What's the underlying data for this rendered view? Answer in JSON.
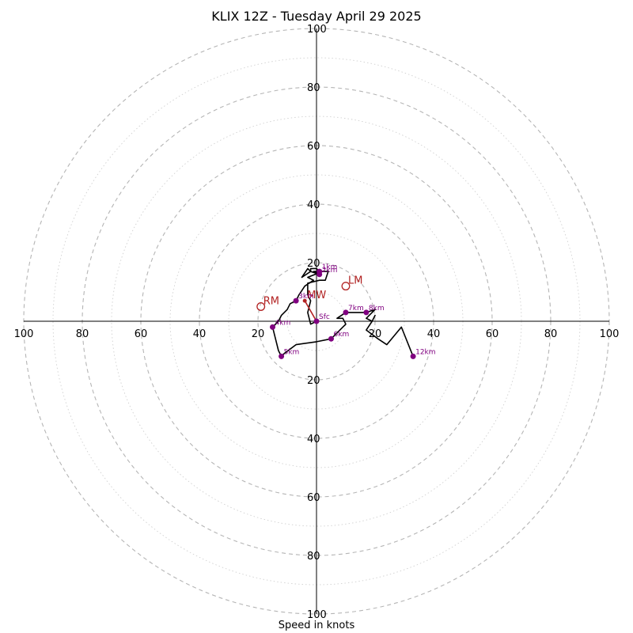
{
  "chart_data": {
    "type": "hodograph",
    "title": "KLIX 12Z - Tuesday April 29 2025",
    "xlabel": "Speed in knots",
    "ylabel": "",
    "range": [
      -100,
      100
    ],
    "rings": [
      10,
      20,
      30,
      40,
      50,
      60,
      70,
      80,
      90,
      100
    ],
    "tick_values": [
      20,
      40,
      60,
      80,
      100
    ],
    "grid": true,
    "colors": {
      "trace": "#000000",
      "height_marker": "#800080",
      "motion": "#b22222",
      "ring_major": "#b5b5b5",
      "ring_minor": "#d0d0d0"
    },
    "trace": [
      [
        0,
        0
      ],
      [
        -2,
        -1
      ],
      [
        -3,
        3
      ],
      [
        -2,
        7
      ],
      [
        -3,
        9
      ],
      [
        -3,
        11
      ],
      [
        -3,
        13
      ],
      [
        1,
        14
      ],
      [
        3,
        14
      ],
      [
        4,
        17
      ],
      [
        -1,
        17
      ],
      [
        1,
        16
      ],
      [
        -2,
        17
      ],
      [
        -3,
        18
      ],
      [
        -5,
        15
      ],
      [
        -2,
        17
      ],
      [
        -2,
        18
      ],
      [
        0,
        18
      ],
      [
        1,
        17
      ],
      [
        2,
        17
      ],
      [
        -3,
        15
      ],
      [
        -1,
        14
      ],
      [
        -4,
        12
      ],
      [
        -6,
        9
      ],
      [
        -7,
        7
      ],
      [
        -9,
        6
      ],
      [
        -10,
        4
      ],
      [
        -12,
        2
      ],
      [
        -13,
        0
      ],
      [
        -15,
        -2
      ],
      [
        -14,
        -6
      ],
      [
        -13,
        -10
      ],
      [
        -12,
        -12
      ],
      [
        -11,
        -11
      ],
      [
        -7,
        -8
      ],
      [
        0,
        -7
      ],
      [
        5,
        -6
      ],
      [
        8,
        -3
      ],
      [
        10,
        -1
      ],
      [
        9,
        1
      ],
      [
        7,
        1
      ],
      [
        10,
        3
      ],
      [
        13,
        3
      ],
      [
        17,
        3
      ],
      [
        20,
        4
      ],
      [
        18,
        2
      ],
      [
        17,
        1
      ],
      [
        19,
        0
      ],
      [
        20,
        2
      ],
      [
        19,
        0
      ],
      [
        17,
        -3
      ],
      [
        21,
        -6
      ],
      [
        24,
        -8
      ],
      [
        29,
        -2
      ],
      [
        33,
        -12
      ]
    ],
    "height_markers": [
      {
        "label": "Sfc",
        "u": 0,
        "v": 0
      },
      {
        "label": "1km",
        "u": 1,
        "v": 17
      },
      {
        "label": "2km",
        "u": 1,
        "v": 16
      },
      {
        "label": "3km",
        "u": -7,
        "v": 7
      },
      {
        "label": "4km",
        "u": -15,
        "v": -2
      },
      {
        "label": "5km",
        "u": -12,
        "v": -12
      },
      {
        "label": "6km",
        "u": 5,
        "v": -6
      },
      {
        "label": "7km",
        "u": 10,
        "v": 3
      },
      {
        "label": "8km",
        "u": 17,
        "v": 3
      },
      {
        "label": "12km",
        "u": 33,
        "v": -12
      }
    ],
    "storm_motion": [
      {
        "label": "RM",
        "u": -19,
        "v": 5
      },
      {
        "label": "LM",
        "u": 10,
        "v": 12
      },
      {
        "label": "MW",
        "u": -4,
        "v": 7
      }
    ],
    "mean_wind_vector": {
      "from": [
        0,
        0
      ],
      "to": [
        -4,
        7
      ]
    }
  }
}
